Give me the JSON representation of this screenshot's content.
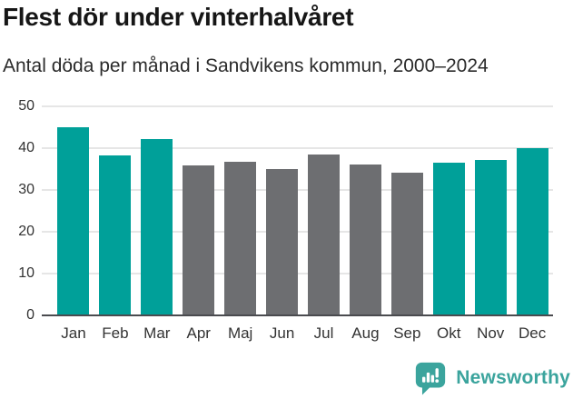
{
  "header": {
    "title": "Flest dör under vinterhalvåret",
    "subtitle": "Antal döda per månad i Sandvikens kommun, 2000–2024"
  },
  "chart_data": {
    "type": "bar",
    "title": "Flest dör under vinterhalvåret",
    "subtitle": "Antal döda per månad i Sandvikens kommun, 2000–2024",
    "categories": [
      "Jan",
      "Feb",
      "Mar",
      "Apr",
      "Maj",
      "Jun",
      "Jul",
      "Aug",
      "Sep",
      "Okt",
      "Nov",
      "Dec"
    ],
    "values": [
      45.0,
      38.3,
      42.2,
      35.9,
      36.8,
      34.9,
      38.4,
      36.0,
      34.2,
      36.6,
      37.1,
      40.1
    ],
    "series_colors": [
      "teal",
      "teal",
      "teal",
      "gray",
      "gray",
      "gray",
      "gray",
      "gray",
      "gray",
      "teal",
      "teal",
      "teal"
    ],
    "highlighted_months": [
      "Jan",
      "Feb",
      "Mar",
      "Okt",
      "Nov",
      "Dec"
    ],
    "xlabel": "",
    "ylabel": "",
    "ylim": [
      0,
      50
    ],
    "yticks": [
      0,
      10,
      20,
      30,
      40,
      50
    ],
    "grid": true,
    "legend": false,
    "palette": {
      "teal": "#00a099",
      "gray": "#6d6e71",
      "gridline": "#e6e6e6",
      "axis": "#4a4b4f"
    }
  },
  "footer": {
    "brand": "Newsworthy",
    "logo": "newsworthy-speech-bubble-bar-chart-icon",
    "brand_color": "#3ba49d"
  }
}
